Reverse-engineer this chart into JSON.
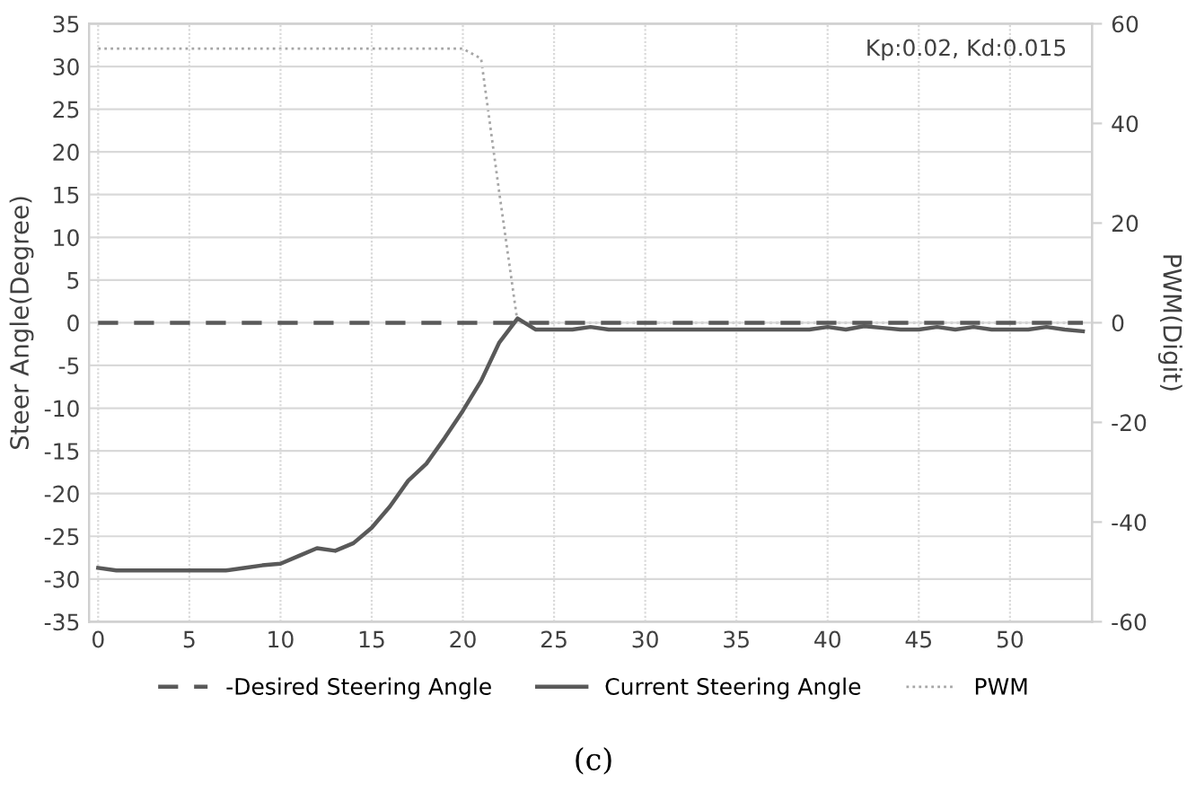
{
  "chart_data": {
    "type": "line",
    "x": [
      0,
      1,
      2,
      3,
      4,
      5,
      6,
      7,
      8,
      9,
      10,
      11,
      12,
      13,
      14,
      15,
      16,
      17,
      18,
      19,
      20,
      21,
      22,
      23,
      24,
      25,
      26,
      27,
      28,
      29,
      30,
      31,
      32,
      33,
      34,
      35,
      36,
      37,
      38,
      39,
      40,
      41,
      42,
      43,
      44,
      45,
      46,
      47,
      48,
      49,
      50,
      51,
      52,
      53,
      54
    ],
    "series": [
      {
        "name": "-Desired Steering Angle",
        "color": "#595959",
        "line_style": "dashed",
        "values": [
          0,
          0,
          0,
          0,
          0,
          0,
          0,
          0,
          0,
          0,
          0,
          0,
          0,
          0,
          0,
          0,
          0,
          0,
          0,
          0,
          0,
          0,
          0,
          0,
          0,
          0,
          0,
          0,
          0,
          0,
          0,
          0,
          0,
          0,
          0,
          0,
          0,
          0,
          0,
          0,
          0,
          0,
          0,
          0,
          0,
          0,
          0,
          0,
          0,
          0,
          0,
          0,
          0,
          0,
          0
        ]
      },
      {
        "name": "Current Steering Angle",
        "color": "#595959",
        "line_style": "solid",
        "values": [
          -28.7,
          -29,
          -29,
          -29,
          -29,
          -29,
          -29,
          -29,
          -28.7,
          -28.4,
          -28.2,
          -27.3,
          -26.4,
          -26.7,
          -25.8,
          -24,
          -21.5,
          -18.5,
          -16.5,
          -13.5,
          -10.3,
          -6.8,
          -2.3,
          0.5,
          -0.8,
          -0.8,
          -0.8,
          -0.5,
          -0.8,
          -0.8,
          -0.8,
          -0.8,
          -0.8,
          -0.8,
          -0.8,
          -0.8,
          -0.8,
          -0.8,
          -0.8,
          -0.8,
          -0.5,
          -0.8,
          -0.4,
          -0.6,
          -0.8,
          -0.8,
          -0.5,
          -0.8,
          -0.5,
          -0.8,
          -0.8,
          -0.8,
          -0.5,
          -0.8,
          -1
        ]
      },
      {
        "name": "PWM",
        "color": "#a6a6a6",
        "line_style": "dotted",
        "axis": "y2",
        "values": [
          55,
          55,
          55,
          55,
          55,
          55,
          55,
          55,
          55,
          55,
          55,
          55,
          55,
          55,
          55,
          55,
          55,
          55,
          55,
          55,
          55,
          53,
          26,
          0,
          0,
          0,
          0,
          0,
          0,
          0,
          0,
          0,
          0,
          0,
          0,
          0,
          0,
          0,
          0,
          0,
          0,
          0,
          0,
          0,
          0,
          0,
          0,
          0,
          0,
          0,
          0,
          0,
          0,
          0,
          0
        ]
      }
    ],
    "xlim": [
      -0.5,
      54.5
    ],
    "xticks": [
      0,
      5,
      10,
      15,
      20,
      25,
      30,
      35,
      40,
      45,
      50
    ],
    "ylim": [
      -35,
      35
    ],
    "yticks": [
      -35,
      -30,
      -25,
      -20,
      -15,
      -10,
      -5,
      0,
      5,
      10,
      15,
      20,
      25,
      30,
      35
    ],
    "y2lim": [
      -60,
      60
    ],
    "y2ticks": [
      -60,
      -40,
      -20,
      0,
      20,
      40,
      60
    ],
    "ylabel": "Steer Angle(Degree)",
    "y2label": "PWM(Digit)",
    "annotations": [
      "Kp:0.02, Kd:0.015",
      "(c)"
    ],
    "grid": true,
    "legend": "bottom"
  }
}
